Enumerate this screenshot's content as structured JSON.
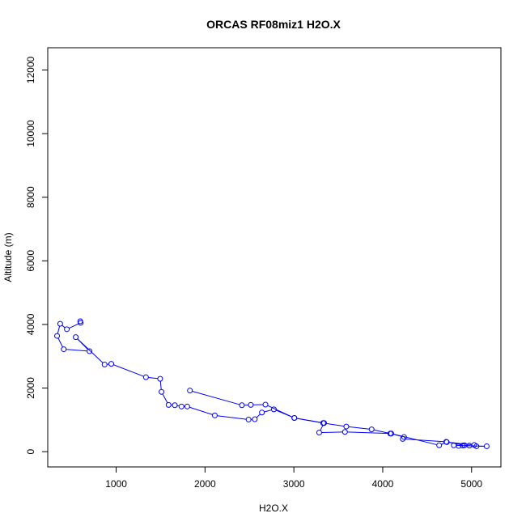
{
  "chart_data": {
    "type": "line",
    "title": "ORCAS RF08miz1 H2O.X",
    "xlabel": "H2O.X",
    "ylabel": "Altitude (m)",
    "xlim": [
      230,
      5330
    ],
    "ylim": [
      -480,
      12700
    ],
    "x_ticks": [
      1000,
      2000,
      3000,
      4000,
      5000
    ],
    "y_ticks": [
      0,
      2000,
      4000,
      6000,
      8000,
      10000,
      12000
    ],
    "grid": false,
    "legend": "none",
    "series": [
      {
        "color": "#0000ff",
        "marker": "open-circle",
        "x": [
          596,
          600,
          445,
          370,
          335,
          410,
          700,
          545,
          870,
          945,
          1335,
          1495,
          1510,
          1590,
          1660,
          1735,
          1800,
          2110,
          2490,
          2560,
          2640,
          2775,
          3005,
          3330,
          3590,
          3875,
          4085,
          4240,
          4225,
          4715,
          4920,
          5055,
          5170,
          4800,
          4855,
          4900,
          4975,
          5030,
          4720,
          4635,
          4095,
          3575,
          3285,
          3340,
          3005,
          2680,
          2515,
          2415,
          1830
        ],
        "y": [
          4100,
          4050,
          3850,
          4020,
          3640,
          3220,
          3160,
          3600,
          2740,
          2760,
          2340,
          2290,
          1880,
          1470,
          1460,
          1420,
          1420,
          1140,
          1010,
          1020,
          1230,
          1330,
          1060,
          900,
          790,
          700,
          570,
          460,
          400,
          310,
          200,
          170,
          170,
          200,
          180,
          190,
          190,
          210,
          300,
          200,
          570,
          620,
          600,
          900,
          1060,
          1480,
          1470,
          1460,
          1920
        ]
      }
    ]
  }
}
